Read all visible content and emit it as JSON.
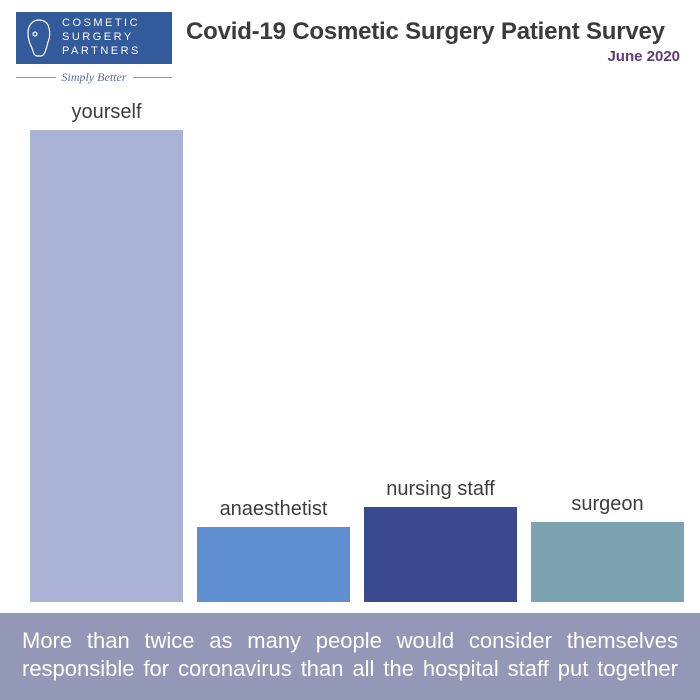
{
  "logo": {
    "line1": "COSMETIC",
    "line2": "SURGERY",
    "line3": "PARTNERS",
    "box_color": "#335a9a",
    "text_color": "#ffffff",
    "tagline": "Simply Better",
    "tagline_color": "#5a6d93",
    "tagline_line_color": "#7a94c2"
  },
  "header": {
    "title": "Covid-19 Cosmetic Surgery Patient Survey",
    "title_color": "#3b3b3b",
    "subtitle": "June 2020",
    "subtitle_color": "#5e3b77"
  },
  "chart": {
    "type": "bar",
    "max_value": 100,
    "label_color": "#3d3d3d",
    "label_fontsize": 20,
    "bars": [
      {
        "label": "yourself",
        "value": 94,
        "color": "#aab3d6"
      },
      {
        "label": "anaesthetist",
        "value": 15,
        "color": "#608fd1"
      },
      {
        "label": "nursing staff",
        "value": 19,
        "color": "#3b4a8f"
      },
      {
        "label": "surgeon",
        "value": 16,
        "color": "#7ca3af"
      }
    ]
  },
  "footer": {
    "text": "More than twice as many people would consider themselves responsible for coronavirus than all the hospital staff put together",
    "bg_color": "#9298b5",
    "text_color": "#ffffff",
    "fontsize": 22
  },
  "background_color": "#ffffff"
}
